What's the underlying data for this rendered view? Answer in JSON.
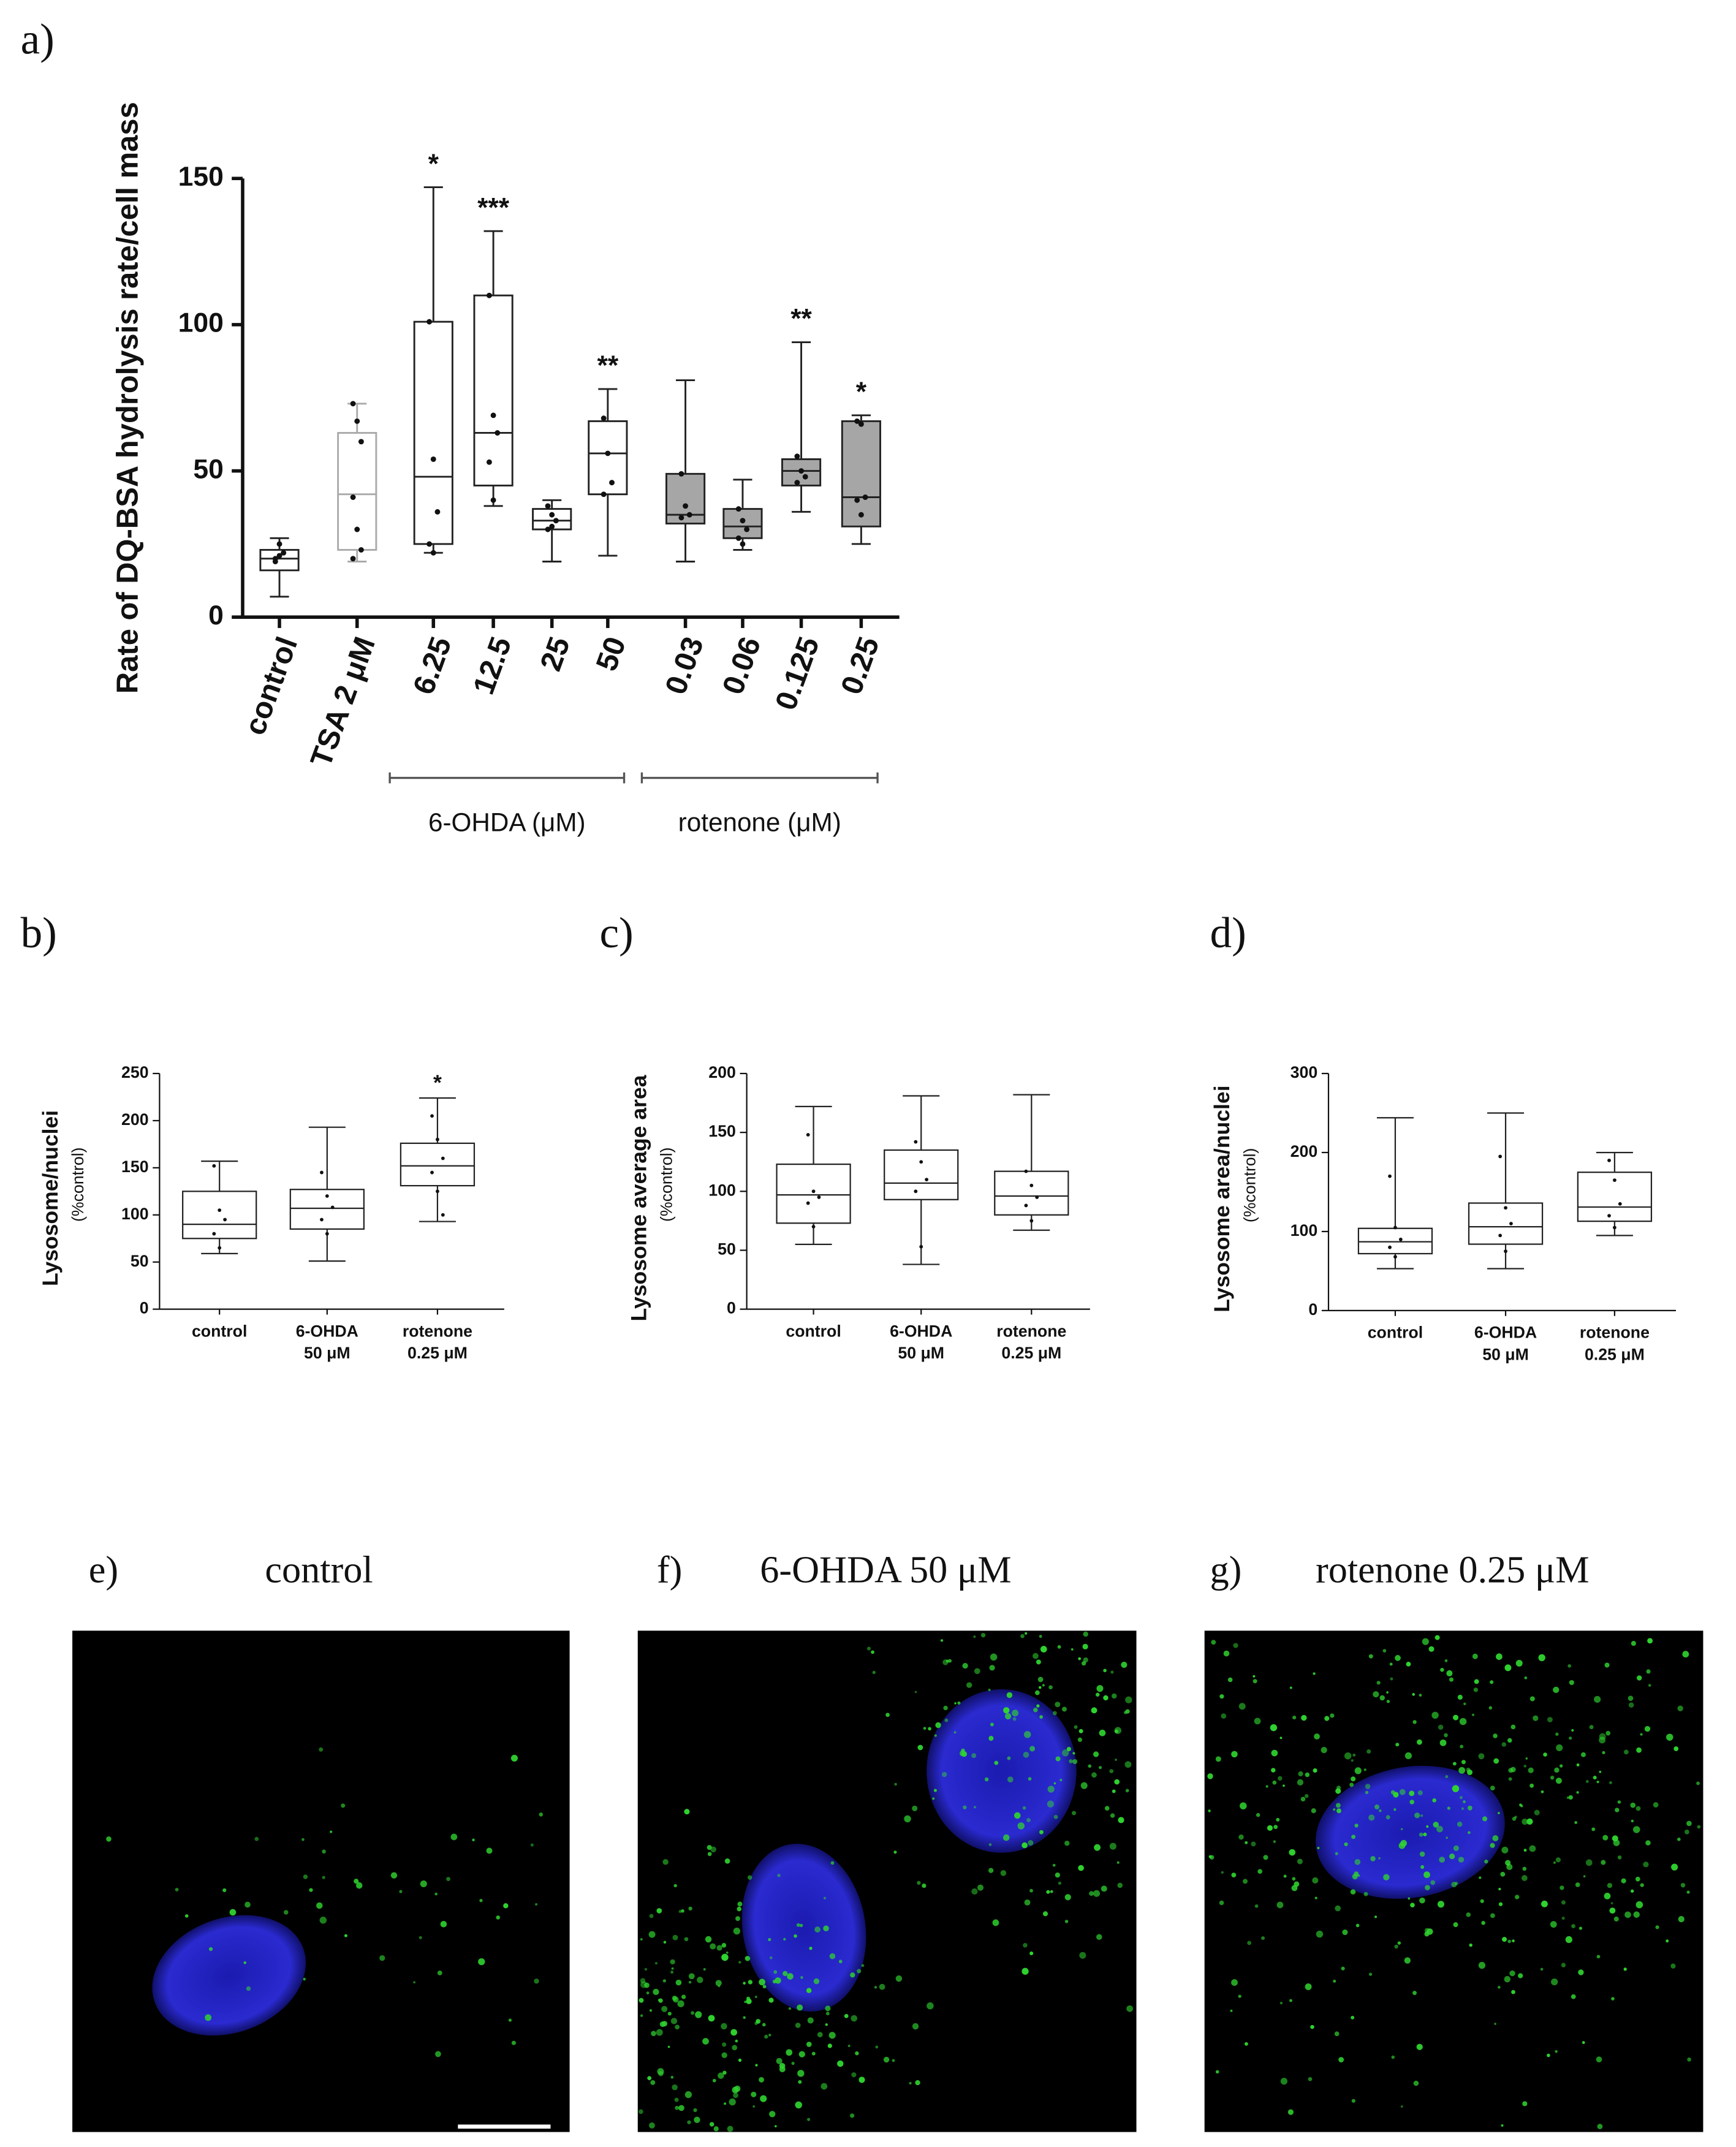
{
  "chart_data": [
    {
      "type": "box",
      "panel": "a)",
      "y_label": "Rate of DQ-BSA hydrolysis rate/cell mass",
      "categories": [
        "control",
        "TSA 2 μM",
        "6.25",
        "12.5",
        "25",
        "50",
        "0.03",
        "0.06",
        "0.125",
        "0.25"
      ],
      "ylim": [
        0,
        150
      ],
      "yticks": [
        0,
        50,
        100,
        150
      ],
      "boxes": [
        {
          "min": 7,
          "q1": 16,
          "median": 20,
          "q3": 23,
          "max": 27,
          "fill": "#ffffff",
          "stroke": "#222222",
          "points": [
            20,
            21,
            22,
            19,
            25
          ]
        },
        {
          "min": 19,
          "q1": 23,
          "median": 42,
          "q3": 63,
          "max": 73,
          "fill": "#ffffff",
          "stroke": "#aaaaaa",
          "points": [
            73,
            67,
            60,
            41,
            30,
            23,
            20
          ]
        },
        {
          "min": 22,
          "q1": 25,
          "median": 48,
          "q3": 101,
          "max": 147,
          "fill": "#ffffff",
          "stroke": "#222222",
          "points": [
            101,
            54,
            36,
            25,
            22
          ]
        },
        {
          "min": 38,
          "q1": 45,
          "median": 63,
          "q3": 110,
          "max": 132,
          "fill": "#ffffff",
          "stroke": "#222222",
          "points": [
            110,
            69,
            63,
            53,
            40
          ]
        },
        {
          "min": 19,
          "q1": 30,
          "median": 33,
          "q3": 37,
          "max": 40,
          "fill": "#ffffff",
          "stroke": "#222222",
          "points": [
            38,
            35,
            33,
            30,
            31
          ]
        },
        {
          "min": 21,
          "q1": 42,
          "median": 56,
          "q3": 67,
          "max": 78,
          "fill": "#ffffff",
          "stroke": "#222222",
          "points": [
            68,
            56,
            46,
            42
          ]
        },
        {
          "min": 19,
          "q1": 32,
          "median": 35,
          "q3": 49,
          "max": 81,
          "fill": "#a6a6a6",
          "stroke": "#222222",
          "points": [
            49,
            38,
            35,
            34
          ]
        },
        {
          "min": 23,
          "q1": 27,
          "median": 31,
          "q3": 37,
          "max": 47,
          "fill": "#a6a6a6",
          "stroke": "#222222",
          "points": [
            37,
            33,
            30,
            27,
            25
          ]
        },
        {
          "min": 36,
          "q1": 45,
          "median": 50,
          "q3": 54,
          "max": 94,
          "fill": "#a6a6a6",
          "stroke": "#222222",
          "points": [
            55,
            50,
            48,
            46
          ]
        },
        {
          "min": 25,
          "q1": 31,
          "median": 41,
          "q3": 67,
          "max": 69,
          "fill": "#a6a6a6",
          "stroke": "#222222",
          "points": [
            67,
            66,
            41,
            40,
            35
          ]
        }
      ],
      "annotations": [
        null,
        null,
        "*",
        "***",
        null,
        "**",
        null,
        null,
        "**",
        "*"
      ],
      "groups": [
        {
          "label": "6-OHDA (μM)",
          "categories": [
            "6.25",
            "12.5",
            "25",
            "50"
          ]
        },
        {
          "label": "rotenone (μM)",
          "categories": [
            "0.03",
            "0.06",
            "0.125",
            "0.25"
          ]
        }
      ]
    },
    {
      "type": "box",
      "panel": "b)",
      "y_label": "Lysosome/nuclei",
      "y_sublabel": "(%control)",
      "categories": [
        [
          "control"
        ],
        [
          "6-OHDA",
          "50 μM"
        ],
        [
          "rotenone",
          "0.25 μM"
        ]
      ],
      "ylim": [
        0,
        250
      ],
      "yticks": [
        0,
        50,
        100,
        150,
        200,
        250
      ],
      "boxes": [
        {
          "min": 59,
          "q1": 75,
          "median": 90,
          "q3": 125,
          "max": 157,
          "fill": "#ffffff",
          "stroke": "#222222",
          "points": [
            152,
            105,
            95,
            80,
            65
          ]
        },
        {
          "min": 51,
          "q1": 85,
          "median": 107,
          "q3": 127,
          "max": 193,
          "fill": "#ffffff",
          "stroke": "#222222",
          "points": [
            145,
            120,
            108,
            95,
            80
          ]
        },
        {
          "min": 93,
          "q1": 131,
          "median": 152,
          "q3": 176,
          "max": 224,
          "fill": "#ffffff",
          "stroke": "#222222",
          "points": [
            205,
            180,
            160,
            145,
            125,
            100
          ]
        }
      ],
      "annotations": [
        null,
        null,
        "*"
      ]
    },
    {
      "type": "box",
      "panel": "c)",
      "y_label": "Lysosome average area",
      "y_sublabel": "(%control)",
      "categories": [
        [
          "control"
        ],
        [
          "6-OHDA",
          "50 μM"
        ],
        [
          "rotenone",
          "0.25 μM"
        ]
      ],
      "ylim": [
        0,
        200
      ],
      "yticks": [
        0,
        50,
        100,
        150,
        200
      ],
      "boxes": [
        {
          "min": 55,
          "q1": 73,
          "median": 97,
          "q3": 123,
          "max": 172,
          "fill": "#ffffff",
          "stroke": "#222222",
          "points": [
            148,
            100,
            95,
            90,
            70
          ]
        },
        {
          "min": 38,
          "q1": 93,
          "median": 107,
          "q3": 135,
          "max": 181,
          "fill": "#ffffff",
          "stroke": "#222222",
          "points": [
            142,
            125,
            110,
            100,
            53
          ]
        },
        {
          "min": 67,
          "q1": 80,
          "median": 96,
          "q3": 117,
          "max": 182,
          "fill": "#ffffff",
          "stroke": "#222222",
          "points": [
            117,
            105,
            95,
            88,
            75
          ]
        }
      ],
      "annotations": [
        null,
        null,
        null
      ]
    },
    {
      "type": "box",
      "panel": "d)",
      "y_label": "Lysosome area/nuclei",
      "y_sublabel": "(%control)",
      "categories": [
        [
          "control"
        ],
        [
          "6-OHDA",
          "50 μM"
        ],
        [
          "rotenone",
          "0.25 μM"
        ]
      ],
      "ylim": [
        0,
        300
      ],
      "yticks": [
        0,
        100,
        200,
        300
      ],
      "boxes": [
        {
          "min": 53,
          "q1": 72,
          "median": 87,
          "q3": 104,
          "max": 244,
          "fill": "#ffffff",
          "stroke": "#222222",
          "points": [
            170,
            105,
            90,
            80,
            68
          ]
        },
        {
          "min": 53,
          "q1": 84,
          "median": 106,
          "q3": 136,
          "max": 250,
          "fill": "#ffffff",
          "stroke": "#222222",
          "points": [
            195,
            130,
            110,
            95,
            75
          ]
        },
        {
          "min": 95,
          "q1": 113,
          "median": 131,
          "q3": 175,
          "max": 200,
          "fill": "#ffffff",
          "stroke": "#222222",
          "points": [
            190,
            165,
            135,
            120,
            105
          ]
        }
      ],
      "annotations": [
        null,
        null,
        null
      ]
    }
  ],
  "images": [
    {
      "label": "e)",
      "title": "control"
    },
    {
      "label": "f)",
      "title": "6-OHDA 50 μM"
    },
    {
      "label": "g)",
      "title": "rotenone 0.25 μM"
    }
  ]
}
